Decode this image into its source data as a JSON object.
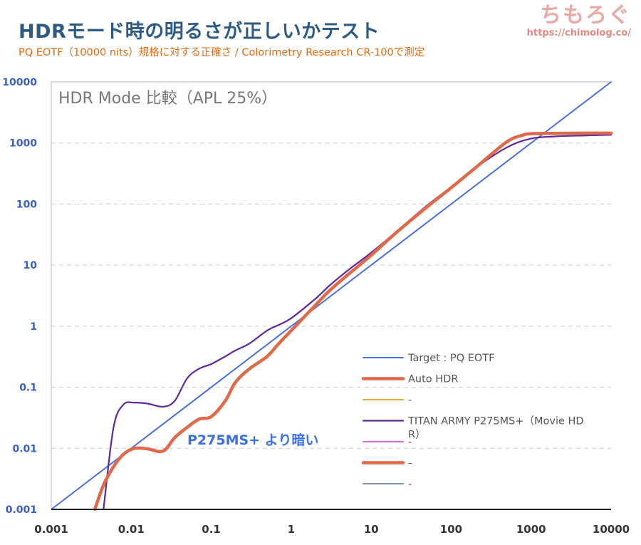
{
  "header": {
    "title": "HDRモード時の明るさが正しいかテスト",
    "subtitle": "PQ EOTF（10000 nits）規格に対する正確さ / Colorimetry Research CR-100で測定"
  },
  "brand": {
    "name": "ちもろぐ",
    "url": "https://chimolog.co/"
  },
  "chart_data": {
    "type": "line",
    "title": "HDR Mode 比較（APL 25%）",
    "x_scale": "log",
    "y_scale": "log",
    "xlim": [
      0.001,
      10000
    ],
    "ylim": [
      0.001,
      10000
    ],
    "x_ticks": [
      "0.001",
      "0.01",
      "0.1",
      "1",
      "10",
      "100",
      "1000",
      "10000"
    ],
    "y_ticks": [
      "0.001",
      "0.01",
      "0.1",
      "1",
      "10",
      "100",
      "1000",
      "10000"
    ],
    "grid": "horizontal dashed",
    "legend_position": "bottom-right",
    "annotation": "P275MS+ より暗い",
    "series": [
      {
        "name": "Target : PQ EOTF",
        "color": "#4a6fe0",
        "x": [
          0.001,
          10000
        ],
        "y": [
          0.001,
          10000
        ]
      },
      {
        "name": "Auto HDR",
        "color": "#e0694a",
        "x": [
          0.0035,
          0.0045,
          0.006,
          0.008,
          0.011,
          0.016,
          0.025,
          0.035,
          0.05,
          0.07,
          0.1,
          0.15,
          0.2,
          0.3,
          0.5,
          0.7,
          1,
          2,
          3,
          5,
          10,
          20,
          50,
          100,
          200,
          500,
          800,
          1000,
          2000,
          5000,
          10000
        ],
        "y": [
          0.001,
          0.0025,
          0.005,
          0.008,
          0.01,
          0.0098,
          0.009,
          0.015,
          0.022,
          0.03,
          0.033,
          0.06,
          0.12,
          0.2,
          0.32,
          0.52,
          0.85,
          2.2,
          3.8,
          6.8,
          14.5,
          33,
          90,
          185,
          390,
          1050,
          1350,
          1420,
          1440,
          1450,
          1450
        ]
      },
      {
        "name": "-",
        "color": "#f0a830",
        "x": [],
        "y": []
      },
      {
        "name": "TITAN ARMY P275MS+（Movie HDR）",
        "color": "#5b2a9e",
        "x": [
          0.0045,
          0.006,
          0.008,
          0.011,
          0.016,
          0.025,
          0.035,
          0.05,
          0.07,
          0.1,
          0.15,
          0.2,
          0.3,
          0.5,
          0.7,
          1,
          2,
          3,
          5,
          10,
          20,
          50,
          100,
          200,
          500,
          1000,
          2000,
          5000,
          10000
        ],
        "y": [
          0.001,
          0.022,
          0.052,
          0.056,
          0.054,
          0.048,
          0.06,
          0.14,
          0.2,
          0.24,
          0.32,
          0.4,
          0.52,
          0.85,
          1.05,
          1.35,
          2.8,
          4.6,
          8,
          16,
          34,
          95,
          190,
          390,
          850,
          1180,
          1280,
          1330,
          1360
        ]
      },
      {
        "name": "-",
        "color": "#d86ad8",
        "x": [],
        "y": []
      },
      {
        "name": "-",
        "color": "#e0694a",
        "x": [],
        "y": []
      },
      {
        "name": "-",
        "color": "#7f93b0",
        "x": [],
        "y": []
      }
    ]
  }
}
